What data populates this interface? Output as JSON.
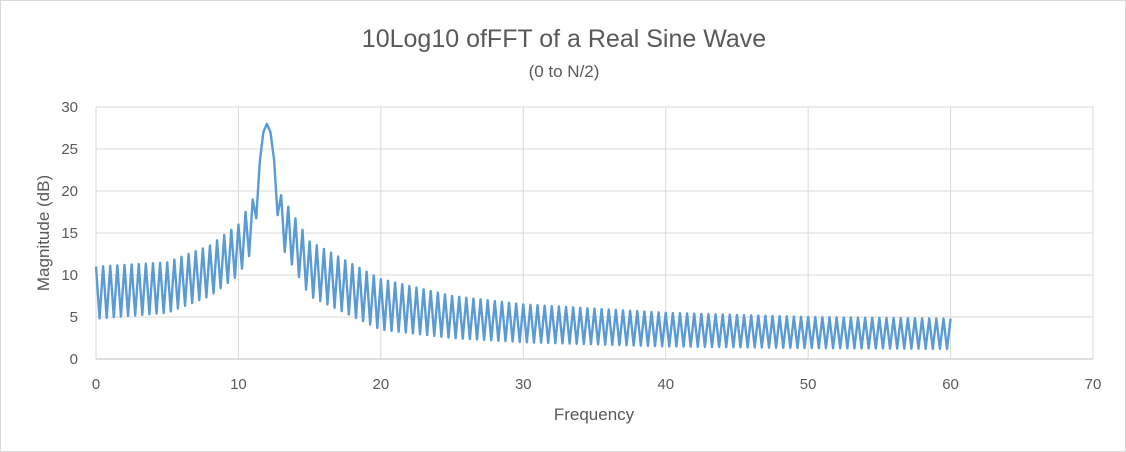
{
  "chart_data": {
    "type": "line",
    "title": "10Log10 ofFFT of a Real Sine Wave",
    "subtitle": "(0 to N/2)",
    "xlabel": "Frequency",
    "ylabel": "Magnitude (dB)",
    "xlim": [
      0,
      70
    ],
    "ylim": [
      0,
      30
    ],
    "xticks": [
      "0",
      "10",
      "20",
      "30",
      "40",
      "50",
      "60",
      "70"
    ],
    "yticks": [
      "0",
      "5",
      "10",
      "15",
      "20",
      "25",
      "30"
    ],
    "grid": true,
    "legend": "none",
    "series": [
      {
        "color": "#5b9bd5",
        "x_start": 0,
        "x_end": 60,
        "x_step": 0.25,
        "peak": {
          "x": 12,
          "y": 28
        },
        "envelope_upper": [
          [
            0,
            11
          ],
          [
            5,
            11.5
          ],
          [
            8,
            13.5
          ],
          [
            10,
            16
          ],
          [
            11,
            19
          ],
          [
            12,
            28
          ],
          [
            13,
            19.5
          ],
          [
            15,
            14
          ],
          [
            20,
            9.5
          ],
          [
            25,
            7.5
          ],
          [
            30,
            6.5
          ],
          [
            40,
            5.5
          ],
          [
            50,
            5
          ],
          [
            60,
            4.8
          ]
        ],
        "envelope_lower": [
          [
            0,
            4.8
          ],
          [
            5,
            5.5
          ],
          [
            8,
            7.5
          ],
          [
            10,
            10
          ],
          [
            11,
            13
          ],
          [
            12,
            28
          ],
          [
            13,
            13.5
          ],
          [
            15,
            7.5
          ],
          [
            20,
            3.5
          ],
          [
            25,
            2.5
          ],
          [
            30,
            2
          ],
          [
            40,
            1.5
          ],
          [
            50,
            1.3
          ],
          [
            60,
            1.2
          ]
        ]
      }
    ]
  }
}
